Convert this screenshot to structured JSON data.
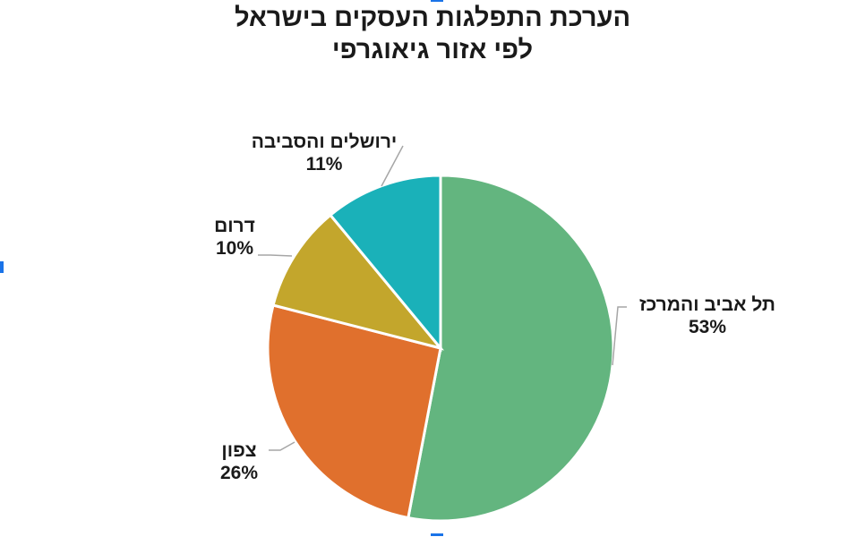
{
  "chart_data": {
    "type": "pie",
    "title": "הערכת התפלגות העסקים בישראל לפי אזור גיאוגרפי",
    "title_lines": [
      "הערכת התפלגות העסקים בישראל",
      "לפי אזור גיאוגרפי"
    ],
    "categories": [
      "תל אביב והמרכז",
      "צפון",
      "דרום",
      "ירושלים והסביבה"
    ],
    "values": [
      53,
      26,
      10,
      11
    ],
    "unit": "%",
    "colors": [
      "#63b57f",
      "#e0702d",
      "#c3a62c",
      "#1ab1b9"
    ],
    "start_angle": "12 o'clock, clockwise",
    "legend": "none (data labels with leader lines)"
  },
  "labels": [
    {
      "name": "תל אביב והמרכז",
      "pct": "53%"
    },
    {
      "name": "צפון",
      "pct": "26%"
    },
    {
      "name": "דרום",
      "pct": "10%"
    },
    {
      "name": "ירושלים והסביבה",
      "pct": "11%"
    }
  ]
}
